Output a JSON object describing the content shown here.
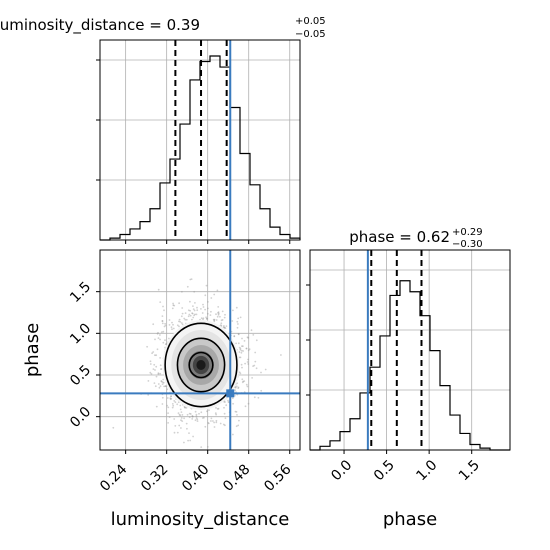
{
  "chart_data": [
    {
      "type": "histogram",
      "parameter": "luminosity_distance",
      "title": {
        "name": "luminosity_distance",
        "value": "0.39",
        "plus": "+0.05",
        "minus": "−0.05"
      },
      "xlim": [
        0.19,
        0.58
      ],
      "bins": {
        "edges_start": 0.19,
        "bin_width": 0.0195,
        "heights": [
          0,
          0.01,
          0.03,
          0.06,
          0.1,
          0.17,
          0.31,
          0.44,
          0.63,
          0.87,
          0.97,
          1.0,
          0.94,
          0.72,
          0.47,
          0.3,
          0.17,
          0.07,
          0.03,
          0.01
        ]
      },
      "quantiles": [
        0.337,
        0.387,
        0.437
      ],
      "truth": 0.444,
      "grid": true
    },
    {
      "type": "histogram",
      "parameter": "phase",
      "title": {
        "name": "phase",
        "value": "0.62",
        "plus": "+0.29",
        "minus": "−0.30"
      },
      "xlim": [
        -0.4,
        1.95
      ],
      "xticks": [
        "0.0",
        "0.5",
        "1.0",
        "1.5"
      ],
      "xlabel": "phase",
      "bins": {
        "edges_start": -0.4,
        "bin_width": 0.1175,
        "heights": [
          0,
          0.02,
          0.05,
          0.1,
          0.17,
          0.31,
          0.45,
          0.62,
          0.84,
          0.92,
          0.86,
          0.73,
          0.54,
          0.35,
          0.19,
          0.09,
          0.03,
          0.01,
          0,
          0
        ]
      },
      "quantiles": [
        0.32,
        0.62,
        0.91
      ],
      "truth": 0.28,
      "grid": true
    },
    {
      "type": "scatter",
      "subtype": "2d-density",
      "xlabel": "luminosity_distance",
      "ylabel": "phase",
      "xlim": [
        0.19,
        0.58
      ],
      "ylim": [
        -0.4,
        2.0
      ],
      "xticks": [
        "0.24",
        "0.32",
        "0.40",
        "0.48",
        "0.56"
      ],
      "yticks": [
        "0.0",
        "0.5",
        "1.0",
        "1.5"
      ],
      "density_peak": {
        "x": 0.387,
        "y": 0.62
      },
      "contours": [
        {
          "level": "inner",
          "rx": 0.023,
          "ry": 0.15
        },
        {
          "level": "mid",
          "rx": 0.046,
          "ry": 0.32
        },
        {
          "level": "outer",
          "rx": 0.07,
          "ry": 0.5
        }
      ],
      "truth": {
        "x": 0.444,
        "y": 0.28
      },
      "grid": true
    }
  ]
}
